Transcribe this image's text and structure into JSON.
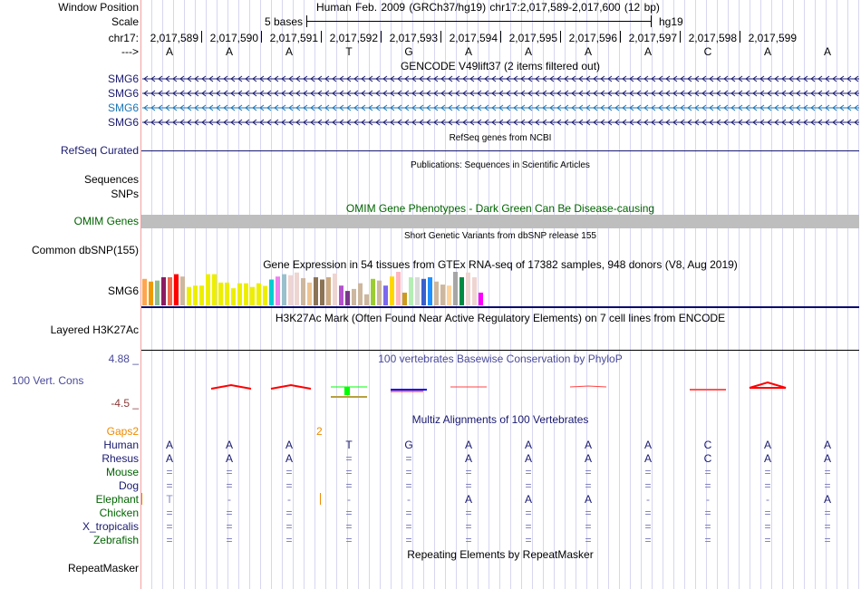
{
  "header": {
    "window_position_label": "Window Position",
    "window_position_text": "Human Feb. 2009 (GRCh37/hg19)   chr17:2,017,589-2,017,600 (12 bp)",
    "scale_label": "Scale",
    "scale_text": "5 bases",
    "assembly": "hg19",
    "chrom_label": "chr17:",
    "strand_label": "--->",
    "positions": [
      "2,017,589",
      "2,017,590",
      "2,017,591",
      "2,017,592",
      "2,017,593",
      "2,017,594",
      "2,017,595",
      "2,017,596",
      "2,017,597",
      "2,017,598",
      "2,017,599"
    ],
    "bases": [
      "A",
      "A",
      "A",
      "T",
      "G",
      "A",
      "A",
      "A",
      "A",
      "C",
      "A",
      "A"
    ]
  },
  "tracks": {
    "gencode": {
      "title": "GENCODE V49lift37 (2 items filtered out)",
      "genes": [
        {
          "name": "SMG6",
          "color": "#191970"
        },
        {
          "name": "SMG6",
          "color": "#191970"
        },
        {
          "name": "SMG6",
          "color": "#1a75b5"
        },
        {
          "name": "SMG6",
          "color": "#191970"
        }
      ]
    },
    "refseq": {
      "title": "RefSeq genes from NCBI",
      "label": "RefSeq Curated"
    },
    "publications": {
      "title": "Publications: Sequences in Scientific Articles",
      "labels": [
        "Sequences",
        "SNPs"
      ]
    },
    "omim": {
      "title": "OMIM Gene Phenotypes - Dark Green Can Be Disease-causing",
      "label": "OMIM Genes"
    },
    "dbsnp": {
      "title": "Short Genetic Variants from dbSNP release 155",
      "label": "Common dbSNP(155)"
    },
    "gtex": {
      "title": "Gene Expression in 54 tissues from GTEx RNA-seq of 17382 samples, 948 donors (V8, Aug 2019)",
      "label": "SMG6"
    },
    "h3k27ac": {
      "title": "H3K27Ac Mark (Often Found Near Active Regulatory Elements) on 7 cell lines from ENCODE",
      "label": "Layered H3K27Ac"
    },
    "cons": {
      "title": "100 vertebrates Basewise Conservation by PhyloP",
      "label": "100 Vert. Cons",
      "max": "4.88 _",
      "min": "-4.5 _"
    },
    "multiz": {
      "title": "Multiz Alignments of 100 Vertebrates",
      "gaps_label": "Gaps2",
      "gap_marker": "2",
      "species": [
        {
          "name": "Human",
          "color": "#191970",
          "bases": [
            "A",
            "A",
            "A",
            "T",
            "G",
            "A",
            "A",
            "A",
            "A",
            "C",
            "A",
            "A"
          ]
        },
        {
          "name": "Rhesus",
          "color": "#191970",
          "bases": [
            "A",
            "A",
            "A",
            "=",
            "=",
            "A",
            "A",
            "A",
            "A",
            "C",
            "A",
            "A"
          ]
        },
        {
          "name": "Mouse",
          "color": "#006400",
          "bases": [
            "=",
            "=",
            "=",
            "=",
            "=",
            "=",
            "=",
            "=",
            "=",
            "=",
            "=",
            "="
          ]
        },
        {
          "name": "Dog",
          "color": "#191970",
          "bases": [
            "=",
            "=",
            "=",
            "=",
            "=",
            "=",
            "=",
            "=",
            "=",
            "=",
            "=",
            "="
          ]
        },
        {
          "name": "Elephant",
          "color": "#006400",
          "bases": [
            "T",
            "-",
            "-",
            "-",
            "-",
            "A",
            "A",
            "A",
            "-",
            "-",
            "-",
            "A"
          ]
        },
        {
          "name": "Chicken",
          "color": "#006400",
          "bases": [
            "=",
            "=",
            "=",
            "=",
            "=",
            "=",
            "=",
            "=",
            "=",
            "=",
            "=",
            "="
          ]
        },
        {
          "name": "X_tropicalis",
          "color": "#191970",
          "bases": [
            "=",
            "=",
            "=",
            "=",
            "=",
            "=",
            "=",
            "=",
            "=",
            "=",
            "=",
            "="
          ]
        },
        {
          "name": "Zebrafish",
          "color": "#006400",
          "bases": [
            "=",
            "=",
            "=",
            "=",
            "=",
            "=",
            "=",
            "=",
            "=",
            "=",
            "=",
            "="
          ]
        }
      ]
    },
    "repeatmasker": {
      "title": "Repeating Elements by RepeatMasker",
      "label": "RepeatMasker"
    }
  },
  "chart_data": {
    "type": "bar",
    "title": "Gene Expression in 54 tissues from GTEx RNA-seq of 17382 samples, 948 donors (V8, Aug 2019)",
    "values": [
      0.79,
      0.71,
      0.74,
      0.84,
      0.84,
      0.93,
      0.86,
      0.55,
      0.59,
      0.59,
      0.93,
      0.93,
      0.68,
      0.68,
      0.51,
      0.66,
      0.66,
      0.55,
      0.66,
      0.58,
      0.77,
      0.86,
      0.93,
      0.9,
      0.98,
      0.81,
      0.68,
      0.84,
      0.77,
      0.84,
      0.95,
      0.59,
      0.43,
      0.49,
      0.66,
      0.33,
      0.79,
      0.74,
      0.59,
      0.86,
      1.0,
      0.38,
      0.84,
      0.84,
      0.79,
      0.84,
      0.71,
      0.62,
      0.59,
      1.0,
      0.84,
      0.98,
      0.84,
      0.38
    ],
    "colors": [
      "#FFA54F",
      "#EE9A00",
      "#8FBC8F",
      "#8B1C62",
      "#EE6A50",
      "#FF0000",
      "#CDB79E",
      "#EEEE00",
      "#EEEE00",
      "#EEEE00",
      "#EEEE00",
      "#EEEE00",
      "#EEEE00",
      "#EEEE00",
      "#EEEE00",
      "#EEEE00",
      "#EEEE00",
      "#EEEE00",
      "#EEEE00",
      "#EEEE00",
      "#00CED1",
      "#EE82EE",
      "#9AC0CD",
      "#EED5D2",
      "#EED5D2",
      "#CDB79E",
      "#EEC591",
      "#8B7355",
      "#8B7355",
      "#CDAA7D",
      "#EED5D2",
      "#B452CD",
      "#7A378B",
      "#CDB79E",
      "#CDB79E",
      "#CDB79E",
      "#9ACD32",
      "#CDB79E",
      "#7B68EE",
      "#FFD700",
      "#FFB6C1",
      "#CD9B1D",
      "#B4EEB4",
      "#D9D9D9",
      "#3A5FCD",
      "#1E90FF",
      "#CDB79E",
      "#CDB79E",
      "#FFD39B",
      "#A6A6A6",
      "#008B45",
      "#EED5D2",
      "#EED5D2",
      "#FF00FF"
    ]
  }
}
